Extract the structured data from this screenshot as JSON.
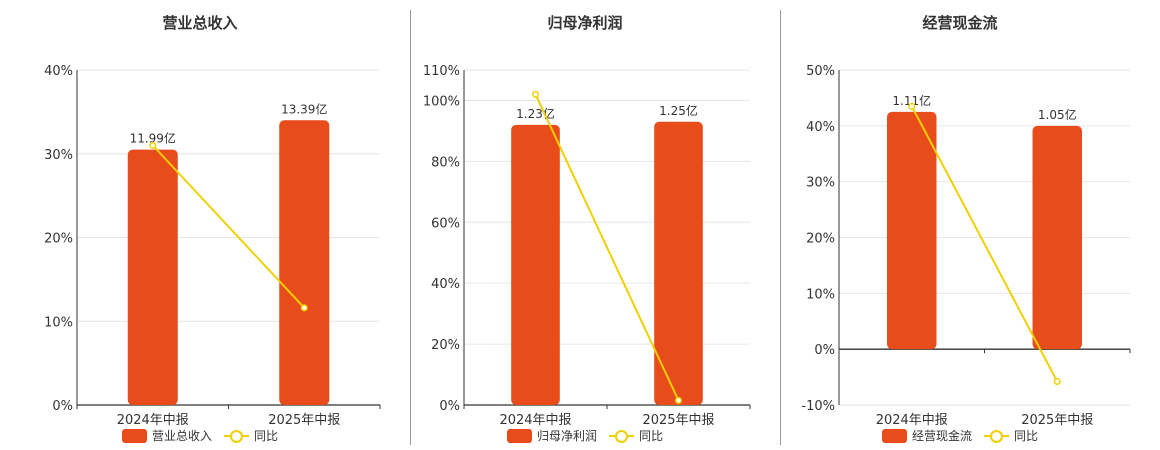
{
  "colors": {
    "bar": "#e84c1a",
    "line": "#f0d000",
    "axis": "#333333",
    "grid": "#e6e6e6",
    "text": "#333333"
  },
  "legend": {
    "line_label": "同比"
  },
  "chart_data": [
    {
      "type": "bar",
      "title": "营业总收入",
      "categories": [
        "2024年中报",
        "2025年中报"
      ],
      "series": [
        {
          "name": "营业总收入",
          "type": "bar",
          "values": [
            30.5,
            34.0
          ],
          "labels": [
            "11.99亿",
            "13.39亿"
          ]
        },
        {
          "name": "同比",
          "type": "line",
          "values": [
            31.0,
            11.6
          ]
        }
      ],
      "ylim": [
        0,
        40
      ],
      "yticks": [
        0,
        10,
        20,
        30,
        40
      ],
      "ytick_labels": [
        "0%",
        "10%",
        "20%",
        "30%",
        "40%"
      ],
      "grid": true,
      "legend_position": "bottom"
    },
    {
      "type": "bar",
      "title": "归母净利润",
      "categories": [
        "2024年中报",
        "2025年中报"
      ],
      "series": [
        {
          "name": "归母净利润",
          "type": "bar",
          "values": [
            92.0,
            93.0
          ],
          "labels": [
            "1.23亿",
            "1.25亿"
          ]
        },
        {
          "name": "同比",
          "type": "line",
          "values": [
            102.0,
            1.5
          ]
        }
      ],
      "ylim": [
        0,
        110
      ],
      "yticks": [
        0,
        20,
        40,
        60,
        80,
        100,
        110
      ],
      "ytick_labels": [
        "0%",
        "20%",
        "40%",
        "60%",
        "80%",
        "100%",
        "110%"
      ],
      "grid": true,
      "legend_position": "bottom"
    },
    {
      "type": "bar",
      "title": "经营现金流",
      "categories": [
        "2024年中报",
        "2025年中报"
      ],
      "series": [
        {
          "name": "经营现金流",
          "type": "bar",
          "values": [
            42.5,
            40.0
          ],
          "labels": [
            "1.11亿",
            "1.05亿"
          ]
        },
        {
          "name": "同比",
          "type": "line",
          "values": [
            43.5,
            -5.8
          ]
        }
      ],
      "ylim": [
        -10,
        50
      ],
      "yticks": [
        -10,
        0,
        10,
        20,
        30,
        40,
        50
      ],
      "ytick_labels": [
        "-10%",
        "0%",
        "10%",
        "20%",
        "30%",
        "40%",
        "50%"
      ],
      "grid": true,
      "legend_position": "bottom"
    }
  ]
}
